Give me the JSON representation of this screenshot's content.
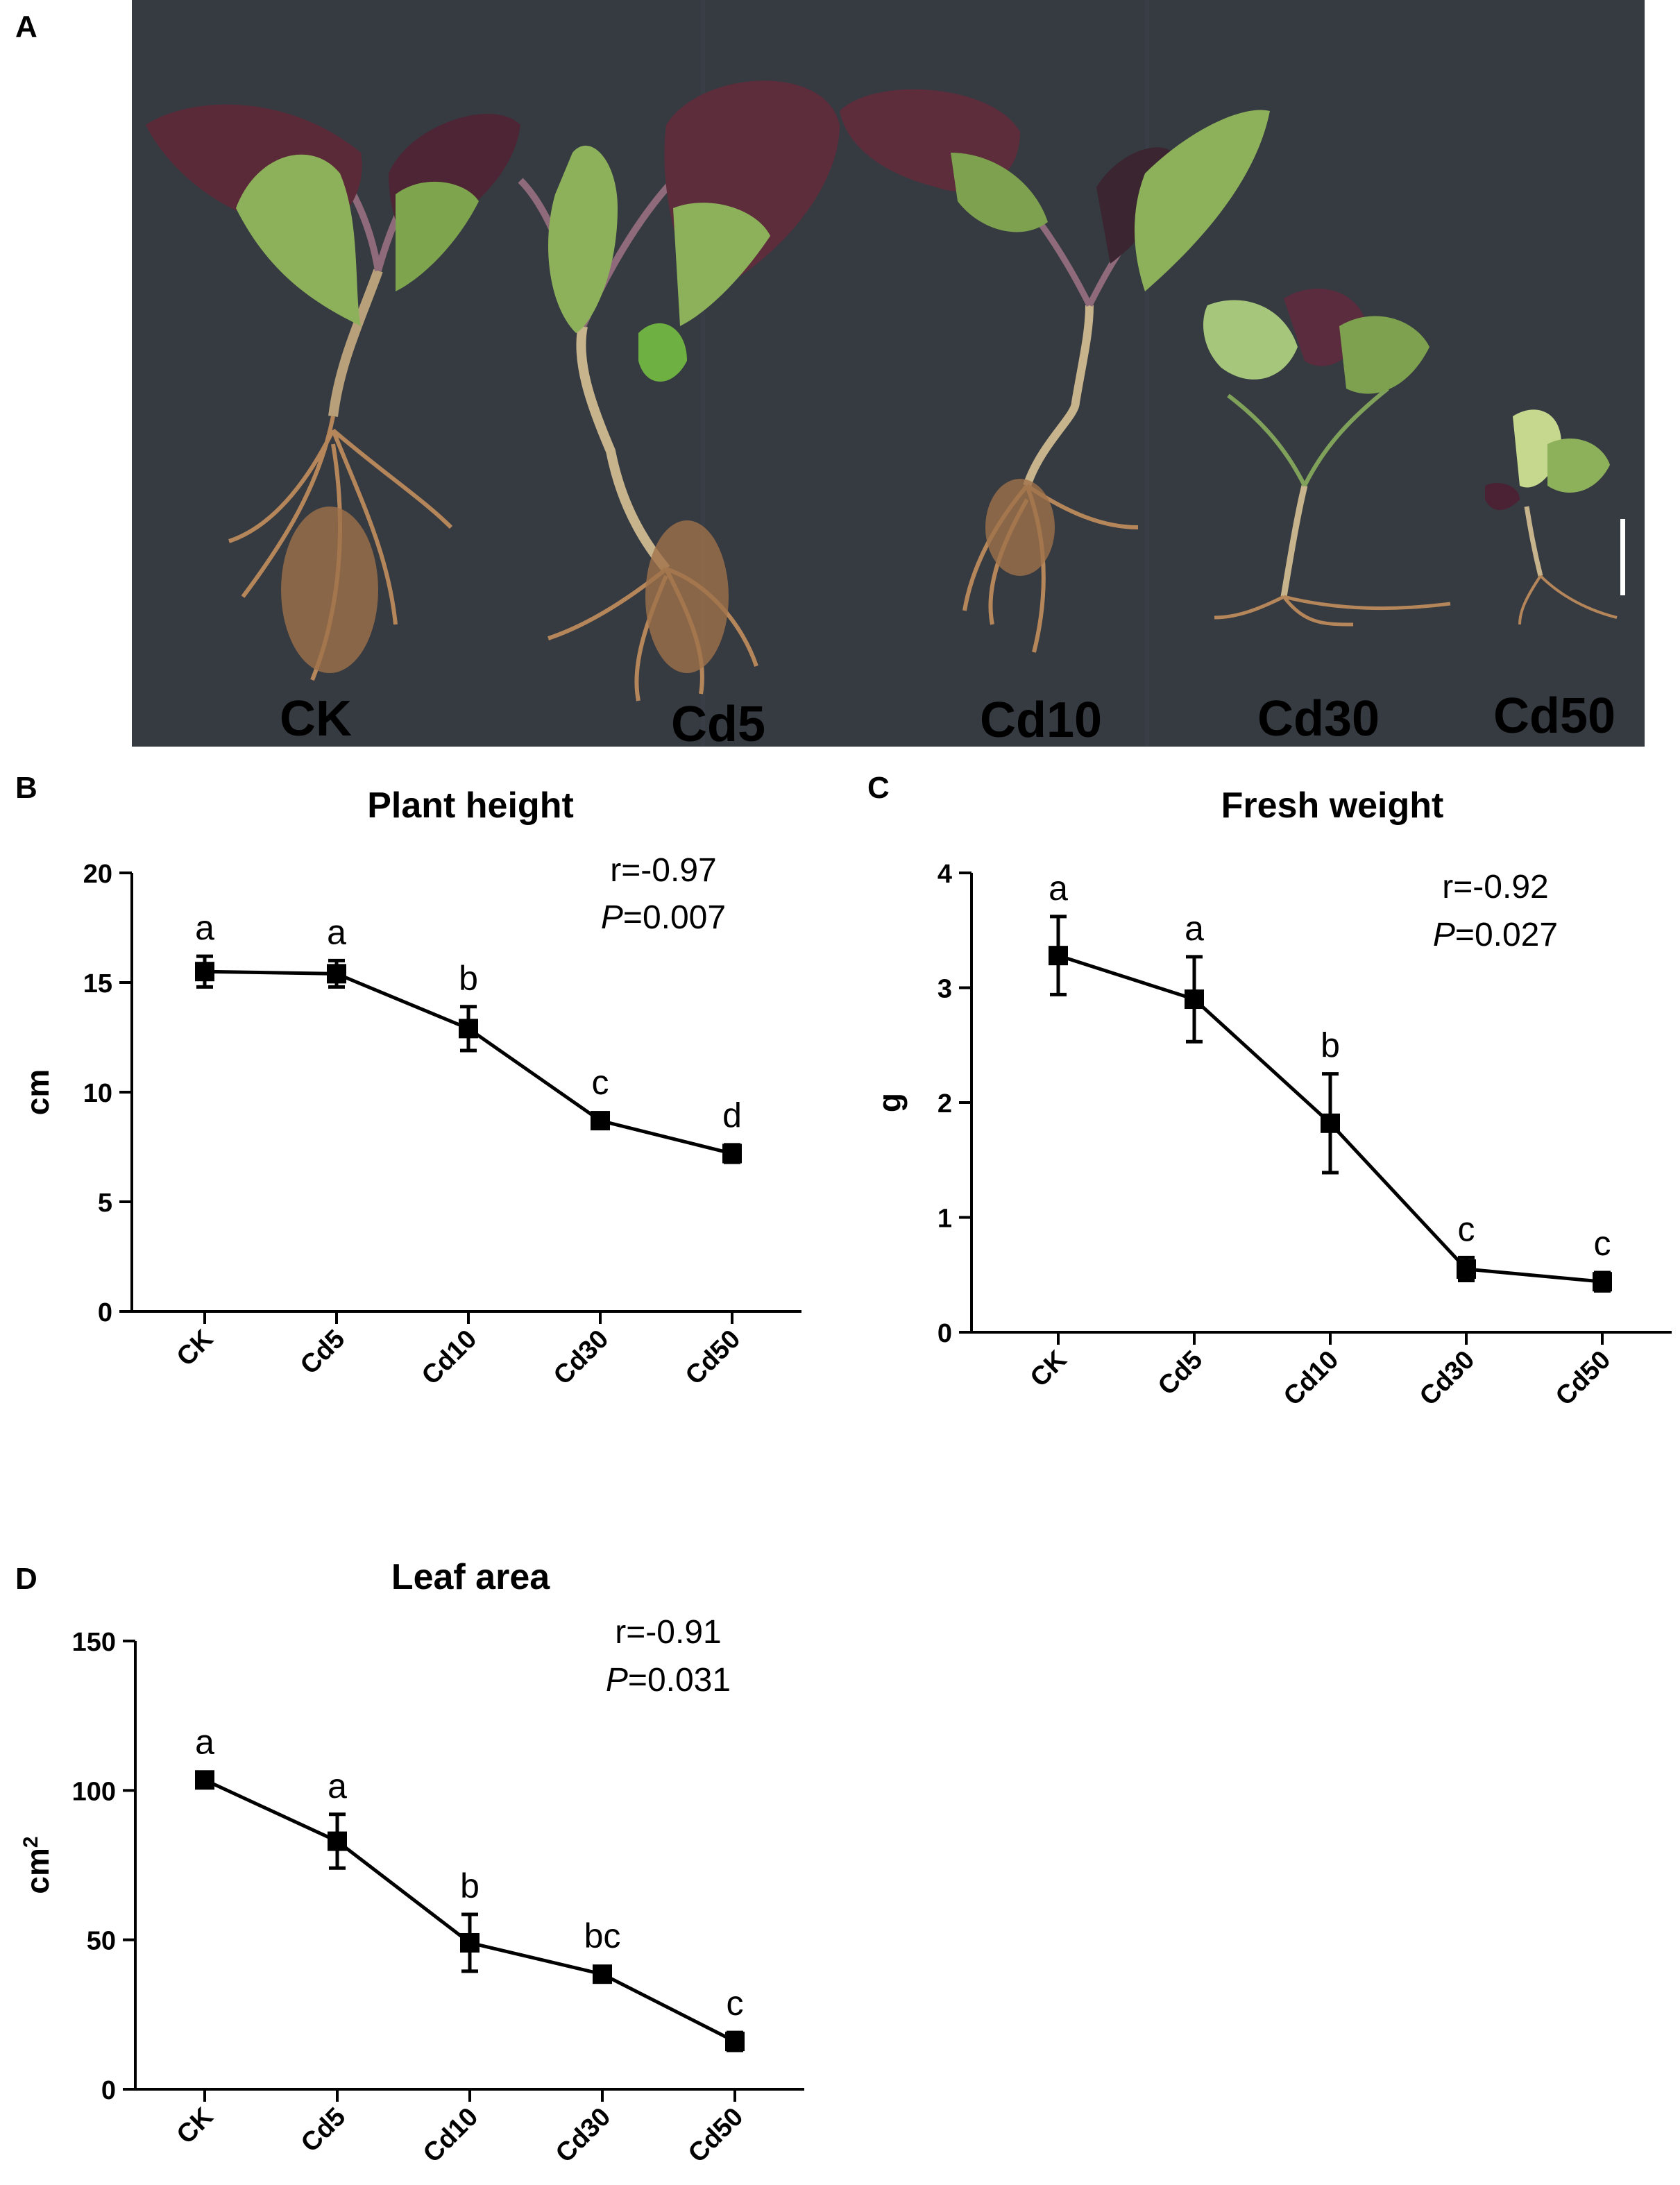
{
  "panels": {
    "A": {
      "letter": "A",
      "plants": [
        {
          "label": "CK",
          "scale": 1.0
        },
        {
          "label": "Cd5",
          "scale": 1.0
        },
        {
          "label": "Cd10",
          "scale": 0.95
        },
        {
          "label": "Cd30",
          "scale": 0.55
        },
        {
          "label": "Cd50",
          "scale": 0.4
        }
      ],
      "colors": {
        "background": "#353940",
        "leaf_green": "#8fb257",
        "leaf_purple": "#5a2a3a",
        "root": "#b5865a"
      }
    }
  },
  "chart_data": [
    {
      "panel": "B",
      "type": "line",
      "title": "Plant height",
      "xlabel": "",
      "ylabel": "cm",
      "categories": [
        "CK",
        "Cd5",
        "Cd10",
        "Cd30",
        "Cd50"
      ],
      "values": [
        15.5,
        15.4,
        12.9,
        8.7,
        7.2
      ],
      "errors": [
        0.7,
        0.6,
        1.0,
        0.2,
        0.4
      ],
      "sig_letters": [
        "a",
        "a",
        "b",
        "c",
        "d"
      ],
      "ylim": [
        0,
        20
      ],
      "yticks": [
        0,
        5,
        10,
        15,
        20
      ],
      "annotation": {
        "r": "r=-0.97",
        "p_italic": "P",
        "p_value": "=0.007"
      }
    },
    {
      "panel": "C",
      "type": "line",
      "title": "Fresh weight",
      "xlabel": "",
      "ylabel": "g",
      "categories": [
        "CK",
        "Cd5",
        "Cd10",
        "Cd30",
        "Cd50"
      ],
      "values": [
        3.28,
        2.9,
        1.82,
        0.55,
        0.44
      ],
      "errors": [
        0.34,
        0.37,
        0.43,
        0.1,
        0.08
      ],
      "sig_letters": [
        "a",
        "a",
        "b",
        "c",
        "c"
      ],
      "ylim": [
        0,
        4
      ],
      "yticks": [
        0,
        1,
        2,
        3,
        4
      ],
      "annotation": {
        "r": "r=-0.92",
        "p_italic": "P",
        "p_value": "=0.027"
      }
    },
    {
      "panel": "D",
      "type": "line",
      "title": "Leaf area",
      "xlabel": "",
      "ylabel": "cm",
      "ylabel_sup": "2",
      "categories": [
        "CK",
        "Cd5",
        "Cd10",
        "Cd30",
        "Cd50"
      ],
      "values": [
        103.5,
        83,
        49,
        38.5,
        16
      ],
      "errors": [
        1.5,
        9,
        9.5,
        1.2,
        3
      ],
      "sig_letters": [
        "a",
        "a",
        "b",
        "bc",
        "c"
      ],
      "ylim": [
        0,
        150
      ],
      "yticks": [
        0,
        50,
        100,
        150
      ],
      "annotation": {
        "r": "r=-0.91",
        "p_italic": "P",
        "p_value": "=0.031"
      }
    }
  ]
}
